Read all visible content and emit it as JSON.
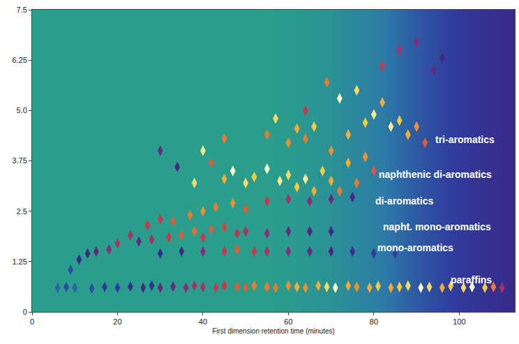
{
  "chart_data": {
    "type": "heatmap",
    "x_title": "First dimension retention time (minutes)",
    "xlim": [
      0,
      113
    ],
    "ylim": [
      0,
      7.5
    ],
    "xticks": [
      0,
      20,
      40,
      60,
      80,
      100
    ],
    "yticks": [
      0,
      1.25,
      2.5,
      3.75,
      {
        "value": 5,
        "label": "5.0"
      },
      6.25,
      7.5
    ],
    "grid": false,
    "zlim": [
      0,
      100
    ],
    "marker": "diamond-tall",
    "baseline": {
      "x": [
        0,
        10,
        20,
        30,
        40,
        50,
        60,
        70,
        80,
        90,
        100,
        110,
        113
      ],
      "values": [
        0,
        0,
        0,
        0,
        0,
        0,
        1,
        5,
        12,
        22,
        30,
        35,
        36
      ]
    },
    "peaks": {
      "x": [
        6,
        8,
        10,
        14,
        17,
        20,
        23,
        26,
        28,
        30,
        33,
        36,
        38,
        40,
        43,
        45,
        48,
        50,
        52,
        55,
        57,
        60,
        62,
        64,
        67,
        69,
        71,
        74,
        76,
        79,
        81,
        84,
        86,
        88,
        91,
        93,
        96,
        98,
        101,
        103,
        106,
        108,
        110,
        9,
        11,
        13,
        15,
        30,
        35,
        40,
        45,
        48,
        52,
        55,
        60,
        65,
        70,
        75,
        80,
        85,
        25,
        28,
        32,
        35,
        38,
        40,
        42,
        45,
        48,
        50,
        55,
        60,
        65,
        70,
        18,
        20,
        23,
        27,
        30,
        33,
        37,
        40,
        43,
        47,
        50,
        55,
        60,
        65,
        70,
        75,
        38,
        40,
        42,
        45,
        47,
        50,
        52,
        55,
        58,
        60,
        62,
        64,
        66,
        68,
        70,
        72,
        74,
        76,
        78,
        80,
        30,
        34,
        45,
        55,
        57,
        60,
        62,
        64,
        66,
        70,
        72,
        74,
        76,
        78,
        80,
        82,
        84,
        86,
        88,
        90,
        92,
        82,
        86,
        90,
        94,
        96,
        69,
        64
      ],
      "y": [
        0.6,
        0.62,
        0.6,
        0.58,
        0.62,
        0.6,
        0.63,
        0.6,
        0.65,
        0.6,
        0.63,
        0.6,
        0.65,
        0.62,
        0.6,
        0.65,
        0.62,
        0.6,
        0.65,
        0.62,
        0.6,
        0.65,
        0.62,
        0.6,
        0.65,
        0.62,
        0.6,
        0.65,
        0.62,
        0.6,
        0.64,
        0.6,
        0.62,
        0.65,
        0.6,
        0.62,
        0.6,
        0.64,
        0.6,
        0.62,
        0.6,
        0.62,
        0.6,
        1.05,
        1.3,
        1.45,
        1.5,
        1.45,
        1.5,
        1.5,
        1.5,
        1.55,
        1.5,
        1.5,
        1.5,
        1.5,
        1.5,
        1.5,
        1.45,
        1.45,
        1.75,
        1.8,
        1.85,
        1.9,
        2.0,
        1.85,
        2.05,
        2.1,
        1.95,
        2.0,
        1.95,
        2.0,
        2.0,
        2.0,
        1.55,
        1.7,
        1.9,
        2.15,
        2.3,
        2.25,
        2.4,
        2.5,
        2.6,
        2.7,
        2.55,
        2.75,
        2.8,
        2.75,
        2.8,
        2.85,
        3.2,
        4.0,
        3.7,
        3.3,
        3.5,
        3.2,
        3.35,
        3.55,
        3.25,
        3.4,
        3.1,
        3.3,
        3.0,
        3.5,
        3.25,
        3.0,
        3.7,
        3.2,
        3.85,
        3.5,
        4.0,
        3.6,
        4.3,
        4.4,
        4.8,
        4.2,
        4.55,
        4.3,
        4.6,
        4.0,
        5.3,
        4.4,
        5.5,
        4.7,
        4.9,
        5.2,
        4.6,
        4.75,
        4.4,
        4.6,
        4.2,
        6.1,
        6.5,
        6.7,
        6.0,
        6.3,
        5.7,
        5.0
      ],
      "intensity": [
        20,
        25,
        20,
        25,
        30,
        30,
        35,
        40,
        35,
        45,
        45,
        50,
        55,
        55,
        60,
        60,
        65,
        65,
        70,
        70,
        70,
        72,
        75,
        72,
        75,
        80,
        85,
        75,
        72,
        75,
        78,
        75,
        78,
        80,
        85,
        80,
        75,
        78,
        80,
        85,
        78,
        70,
        55,
        25,
        35,
        40,
        45,
        35,
        40,
        50,
        60,
        65,
        60,
        55,
        50,
        45,
        40,
        35,
        30,
        28,
        45,
        55,
        60,
        65,
        68,
        60,
        65,
        62,
        58,
        55,
        50,
        45,
        40,
        35,
        50,
        55,
        55,
        60,
        60,
        65,
        70,
        72,
        70,
        72,
        65,
        60,
        55,
        50,
        45,
        40,
        80,
        82,
        65,
        75,
        85,
        80,
        78,
        85,
        82,
        80,
        78,
        82,
        75,
        78,
        75,
        70,
        75,
        70,
        72,
        65,
        45,
        40,
        70,
        70,
        80,
        72,
        75,
        70,
        78,
        72,
        85,
        75,
        80,
        78,
        82,
        75,
        82,
        78,
        75,
        72,
        65,
        60,
        55,
        50,
        45,
        40,
        70,
        60
      ]
    },
    "annotations": [
      {
        "text": "tri-aromatics",
        "x": 108.6,
        "y": 4.27
      },
      {
        "text": "naphthenic di-aromatics",
        "x": 108,
        "y": 3.42
      },
      {
        "text": "di-aromatics",
        "x": 94.3,
        "y": 2.76
      },
      {
        "text": "napht. mono-aromatics",
        "x": 107.8,
        "y": 2.12
      },
      {
        "text": "mono-aromatics",
        "x": 98.9,
        "y": 1.59
      },
      {
        "text": "paraffins",
        "x": 108,
        "y": 0.79
      }
    ]
  }
}
